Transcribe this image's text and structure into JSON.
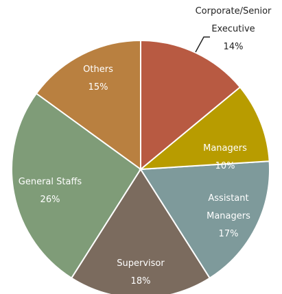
{
  "chart_data": {
    "type": "pie",
    "categories": [
      "Corporate/Senior Executive",
      "Managers",
      "Assistant Managers",
      "Supervisor",
      "General Staffs",
      "Others"
    ],
    "values": [
      14,
      10,
      17,
      18,
      26,
      15
    ],
    "value_labels": [
      "14%",
      "10%",
      "17%",
      "18%",
      "26%",
      "15%"
    ],
    "colors": [
      "#b85a42",
      "#b89c00",
      "#7e9a9b",
      "#7b6b5e",
      "#7f9c78",
      "#b98040"
    ]
  }
}
